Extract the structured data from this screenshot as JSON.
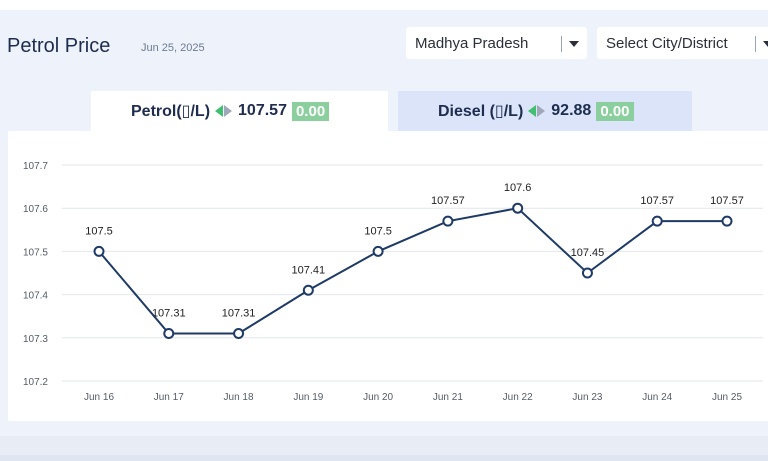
{
  "header": {
    "title": "Petrol Price",
    "date": "Jun 25, 2025"
  },
  "filters": {
    "state_value": "Madhya Pradesh",
    "city_value": "Select City/District"
  },
  "tabs": [
    {
      "fuel_label": "Petrol(▯/L)",
      "price": "107.57",
      "change": "0.00",
      "active": true
    },
    {
      "fuel_label": "Diesel (▯/L)",
      "price": "92.88",
      "change": "0.00",
      "active": false
    }
  ],
  "colors": {
    "line": "#1e3a66",
    "grid": "#e2e6ee",
    "up_arrow": "#3fbf6f",
    "badge": "#8ccf9e"
  },
  "chart_data": {
    "type": "line",
    "categories": [
      "Jun 16",
      "Jun 17",
      "Jun 18",
      "Jun 19",
      "Jun 20",
      "Jun 21",
      "Jun 22",
      "Jun 23",
      "Jun 24",
      "Jun 25"
    ],
    "series": [
      {
        "values": [
          107.5,
          107.31,
          107.31,
          107.41,
          107.5,
          107.57,
          107.6,
          107.45,
          107.57,
          107.57
        ]
      }
    ],
    "data_labels": [
      "107.5",
      "107.31",
      "107.31",
      "107.41",
      "107.5",
      "107.57",
      "107.6",
      "107.45",
      "107.57",
      "107.57"
    ],
    "y_ticks": [
      "107.2",
      "107.3",
      "107.4",
      "107.5",
      "107.6",
      "107.7"
    ],
    "ylim": [
      107.2,
      107.7
    ],
    "grid": true
  }
}
